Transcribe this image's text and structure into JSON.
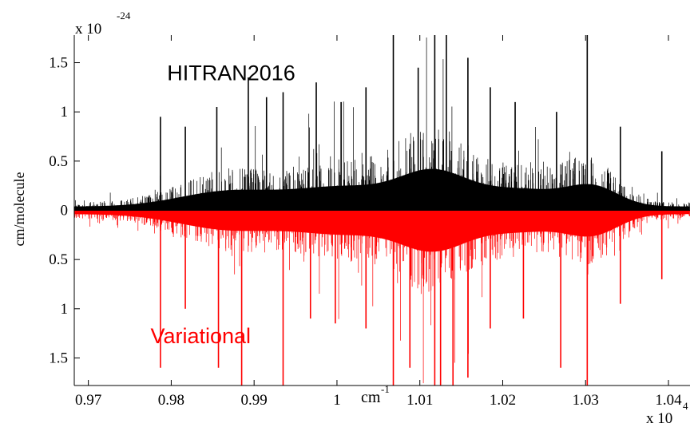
{
  "chart_data": {
    "type": "line",
    "title": "",
    "xlabel": "cm",
    "xlabel_superscript": "-1",
    "ylabel": "cm/molecule",
    "y_multiplier": {
      "base": "x 10",
      "exponent": "-24"
    },
    "x_multiplier": {
      "base": "x 10",
      "exponent": "4"
    },
    "xlim": [
      0.9683,
      1.0426
    ],
    "ylim": [
      -1.78,
      1.78
    ],
    "xticks": [
      0.97,
      0.98,
      0.99,
      1.0,
      1.01,
      1.02,
      1.03,
      1.04
    ],
    "xtick_labels": [
      "0.97",
      "0.98",
      "0.99",
      "1",
      "1.01",
      "1.02",
      "1.03",
      "1.04"
    ],
    "yticks": [
      1.5,
      1.0,
      0.5,
      0.0,
      -0.5,
      -1.0,
      -1.5
    ],
    "ytick_labels": [
      "1.5",
      "1",
      "0.5",
      "0",
      "0.5",
      "1",
      "1.5"
    ],
    "grid": false,
    "series": [
      {
        "name": "HITRAN2016",
        "color": "#000000",
        "direction": "up",
        "representative_peaks": [
          [
            0.9787,
            0.95
          ],
          [
            0.9817,
            0.85
          ],
          [
            0.9855,
            1.05
          ],
          [
            0.9893,
            1.35
          ],
          [
            0.9915,
            1.15
          ],
          [
            0.9935,
            1.2
          ],
          [
            0.9975,
            1.3
          ],
          [
            1.0005,
            1.1
          ],
          [
            1.0035,
            1.25
          ],
          [
            1.0068,
            1.78
          ],
          [
            1.0098,
            1.45
          ],
          [
            1.0118,
            1.78
          ],
          [
            1.0132,
            1.78
          ],
          [
            1.0158,
            1.55
          ],
          [
            1.0185,
            1.25
          ],
          [
            1.0215,
            1.1
          ],
          [
            1.0265,
            1.0
          ],
          [
            1.0302,
            1.78
          ],
          [
            1.0342,
            0.85
          ],
          [
            1.0392,
            0.6
          ]
        ]
      },
      {
        "name": "Variational",
        "color": "#ff0000",
        "direction": "down",
        "representative_peaks": [
          [
            0.9787,
            1.6
          ],
          [
            0.9817,
            1.0
          ],
          [
            0.9857,
            1.6
          ],
          [
            0.9885,
            1.78
          ],
          [
            0.9935,
            1.78
          ],
          [
            0.9968,
            1.1
          ],
          [
            0.9998,
            1.15
          ],
          [
            1.0035,
            1.2
          ],
          [
            1.0068,
            1.78
          ],
          [
            1.0088,
            1.6
          ],
          [
            1.0118,
            1.78
          ],
          [
            1.0125,
            1.78
          ],
          [
            1.014,
            1.78
          ],
          [
            1.0158,
            1.7
          ],
          [
            1.0185,
            1.2
          ],
          [
            1.0225,
            1.1
          ],
          [
            1.027,
            1.6
          ],
          [
            1.0302,
            1.78
          ],
          [
            1.0342,
            0.95
          ],
          [
            1.0392,
            0.7
          ]
        ]
      }
    ],
    "annotations": [
      {
        "text": "HITRAN2016",
        "color": "#000000",
        "x": 0.9795,
        "y": 1.32
      },
      {
        "text": "Variational",
        "color": "#ff0000",
        "x": 0.9775,
        "y": -1.35
      }
    ]
  }
}
